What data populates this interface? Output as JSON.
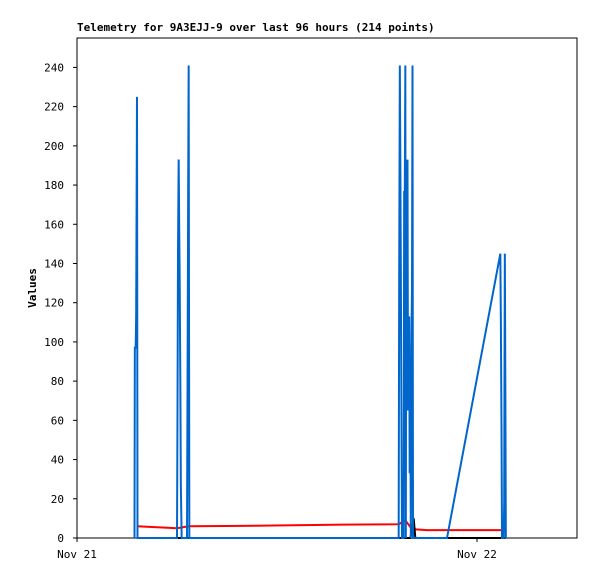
{
  "chart_data": {
    "type": "line",
    "title": "Telemetry for 9A3EJJ-9 over last 96 hours (214 points)",
    "y_label": "Values",
    "xlim": [
      0,
      30
    ],
    "xticks": [
      {
        "value": 0,
        "label": "Nov 21"
      },
      {
        "value": 24,
        "label": "Nov 22"
      }
    ],
    "ylim": [
      0,
      255
    ],
    "yticks": [
      0,
      20,
      40,
      60,
      80,
      100,
      120,
      140,
      160,
      180,
      200,
      220,
      240
    ],
    "series": [
      {
        "color": "#ff0000",
        "x": [
          3.6,
          6.0,
          6.7,
          10,
          16,
          19.3,
          19.7,
          20.1,
          21,
          25.7
        ],
        "values": [
          6,
          5,
          6,
          6.2,
          6.8,
          7,
          9,
          4.5,
          4,
          4
        ]
      },
      {
        "color": "#000000",
        "x": [
          3.6,
          20.0,
          20.2,
          20.3,
          25.7
        ],
        "values": [
          0,
          0,
          10,
          0,
          0
        ]
      },
      {
        "color": "#0066cc",
        "x": [
          3.45,
          3.47,
          3.52,
          3.55,
          3.6,
          3.63,
          6.0,
          6.03,
          6.06,
          6.1,
          6.13,
          6.16,
          6.2,
          6.23,
          6.28,
          6.6,
          6.63,
          6.67,
          6.7,
          6.74,
          19.3,
          19.33,
          19.37,
          19.4,
          19.43,
          19.5,
          19.6,
          19.63,
          19.66,
          19.7,
          19.73,
          19.76,
          19.8,
          19.83,
          19.86,
          19.9,
          19.93,
          19.96,
          20.0,
          20.03,
          20.06,
          20.1,
          20.13,
          20.16,
          22.2,
          25.4,
          25.43,
          25.47,
          25.5,
          25.6,
          25.63,
          25.67,
          25.7,
          25.73
        ],
        "values": [
          0,
          97,
          97,
          113,
          225,
          0,
          0,
          65,
          145,
          193,
          160,
          133,
          80,
          27,
          0,
          0,
          73,
          177,
          241,
          0,
          0,
          128,
          241,
          193,
          137,
          0,
          0,
          177,
          160,
          241,
          0,
          193,
          97,
          193,
          65,
          97,
          113,
          33,
          65,
          0,
          97,
          128,
          241,
          0,
          0,
          145,
          113,
          57,
          0,
          0,
          17,
          145,
          80,
          0
        ]
      }
    ]
  }
}
